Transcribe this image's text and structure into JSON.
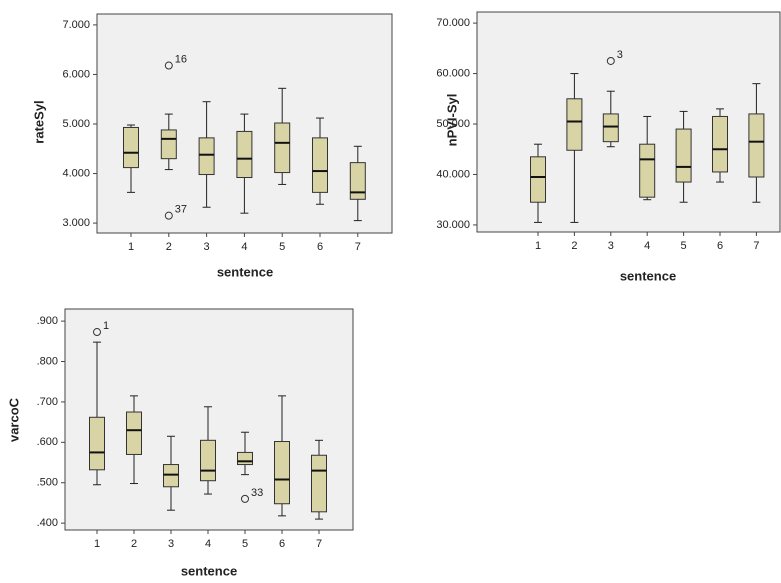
{
  "chart_data": [
    {
      "type": "box",
      "x_label": "sentence",
      "y_label": "rateSyl",
      "color": "#d9d4a6",
      "categories": [
        "1",
        "2",
        "3",
        "4",
        "5",
        "6",
        "7"
      ],
      "boxes": [
        {
          "min": 3.62,
          "q1": 4.12,
          "median": 4.42,
          "q3": 4.93,
          "max": 4.98
        },
        {
          "min": 4.08,
          "q1": 4.3,
          "median": 4.7,
          "q3": 4.88,
          "max": 5.2
        },
        {
          "min": 3.32,
          "q1": 3.98,
          "median": 4.38,
          "q3": 4.72,
          "max": 5.45
        },
        {
          "min": 3.2,
          "q1": 3.92,
          "median": 4.3,
          "q3": 4.85,
          "max": 5.2
        },
        {
          "min": 3.78,
          "q1": 4.02,
          "median": 4.62,
          "q3": 5.02,
          "max": 5.72
        },
        {
          "min": 3.38,
          "q1": 3.62,
          "median": 4.05,
          "q3": 4.72,
          "max": 5.12
        },
        {
          "min": 3.05,
          "q1": 3.48,
          "median": 3.62,
          "q3": 4.22,
          "max": 4.55
        }
      ],
      "outliers": [
        {
          "x": "2",
          "value": 6.18,
          "label": "16"
        },
        {
          "x": "2",
          "value": 3.15,
          "label": "37"
        }
      ],
      "ylim": [
        2.8,
        7.22
      ],
      "yticks": [
        {
          "value": 3,
          "label": "3.000"
        },
        {
          "value": 4,
          "label": "4.000"
        },
        {
          "value": 5,
          "label": "5.000"
        },
        {
          "value": 6,
          "label": "6.000"
        },
        {
          "value": 7,
          "label": "7.000"
        }
      ]
    },
    {
      "type": "box",
      "x_label": "sentence",
      "y_label": "nPVI-Syl",
      "color": "#d9d4a6",
      "categories": [
        "1",
        "2",
        "3",
        "4",
        "5",
        "6",
        "7"
      ],
      "boxes": [
        {
          "min": 30.5,
          "q1": 34.5,
          "median": 39.5,
          "q3": 43.5,
          "max": 46
        },
        {
          "min": 30.5,
          "q1": 44.8,
          "median": 50.5,
          "q3": 55,
          "max": 60
        },
        {
          "min": 45.5,
          "q1": 46.5,
          "median": 49.5,
          "q3": 52,
          "max": 56.5
        },
        {
          "min": 35,
          "q1": 35.5,
          "median": 43,
          "q3": 46,
          "max": 51.5
        },
        {
          "min": 34.5,
          "q1": 38.5,
          "median": 41.5,
          "q3": 49,
          "max": 52.5
        },
        {
          "min": 38.5,
          "q1": 40.5,
          "median": 45,
          "q3": 51.5,
          "max": 53
        },
        {
          "min": 34.5,
          "q1": 39.5,
          "median": 46.5,
          "q3": 52,
          "max": 58
        }
      ],
      "outliers": [
        {
          "x": "3",
          "value": 62.5,
          "label": "3"
        }
      ],
      "ylim": [
        28.6,
        72.2
      ],
      "yticks": [
        {
          "value": 30,
          "label": "30.000"
        },
        {
          "value": 40,
          "label": "40.000"
        },
        {
          "value": 50,
          "label": "50.000"
        },
        {
          "value": 60,
          "label": "60.000"
        },
        {
          "value": 70,
          "label": "70.000"
        }
      ]
    },
    {
      "type": "box",
      "x_label": "sentence",
      "y_label": "varcoC",
      "color": "#d9d4a6",
      "categories": [
        "1",
        "2",
        "3",
        "4",
        "5",
        "6",
        "7"
      ],
      "boxes": [
        {
          "min": 0.495,
          "q1": 0.532,
          "median": 0.575,
          "q3": 0.662,
          "max": 0.848
        },
        {
          "min": 0.498,
          "q1": 0.57,
          "median": 0.63,
          "q3": 0.675,
          "max": 0.715
        },
        {
          "min": 0.432,
          "q1": 0.49,
          "median": 0.52,
          "q3": 0.545,
          "max": 0.615
        },
        {
          "min": 0.472,
          "q1": 0.505,
          "median": 0.53,
          "q3": 0.605,
          "max": 0.688
        },
        {
          "min": 0.52,
          "q1": 0.545,
          "median": 0.553,
          "q3": 0.575,
          "max": 0.625
        },
        {
          "min": 0.418,
          "q1": 0.448,
          "median": 0.508,
          "q3": 0.602,
          "max": 0.715
        },
        {
          "min": 0.41,
          "q1": 0.428,
          "median": 0.53,
          "q3": 0.568,
          "max": 0.605
        }
      ],
      "outliers": [
        {
          "x": "1",
          "value": 0.873,
          "label": "1"
        },
        {
          "x": "5",
          "value": 0.46,
          "label": "33"
        }
      ],
      "ylim": [
        0.383,
        0.93
      ],
      "yticks": [
        {
          "value": 0.4,
          "label": ".400"
        },
        {
          "value": 0.5,
          "label": ".500"
        },
        {
          "value": 0.6,
          "label": ".600"
        },
        {
          "value": 0.7,
          "label": ".700"
        },
        {
          "value": 0.8,
          "label": ".800"
        },
        {
          "value": 0.9,
          "label": ".900"
        }
      ]
    }
  ]
}
